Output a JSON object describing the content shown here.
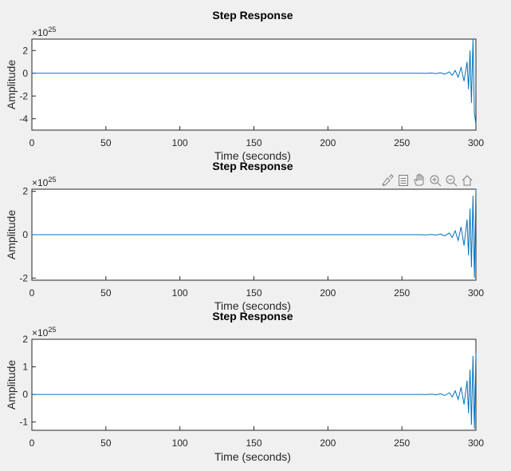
{
  "chart_data": [
    {
      "type": "line",
      "title": "Step Response",
      "xlabel": "Time (seconds)",
      "ylabel": "Amplitude",
      "exponent": "25",
      "xlim": [
        0,
        300
      ],
      "ylim": [
        -5,
        3
      ],
      "xticks": [
        0,
        50,
        100,
        150,
        200,
        250,
        300
      ],
      "yticks": [
        -4,
        -2,
        0,
        2
      ],
      "series": [
        {
          "x": [
            0,
            262,
            266,
            270,
            273,
            276,
            279,
            282,
            284,
            286,
            288,
            290,
            292,
            294,
            295,
            296,
            297,
            298,
            299,
            300
          ],
          "y": [
            0,
            0,
            -0.01,
            0.02,
            -0.03,
            0.05,
            -0.08,
            0.12,
            -0.18,
            0.25,
            -0.35,
            0.5,
            -0.7,
            1.0,
            -1.4,
            2.0,
            -2.6,
            3.0,
            -3.5,
            -4.5
          ]
        }
      ]
    },
    {
      "type": "line",
      "title": "Step Response",
      "xlabel": "Time (seconds)",
      "ylabel": "Amplitude",
      "exponent": "25",
      "xlim": [
        0,
        300
      ],
      "ylim": [
        -2.1,
        2.1
      ],
      "xticks": [
        0,
        50,
        100,
        150,
        200,
        250,
        300
      ],
      "yticks": [
        -2,
        0,
        2
      ],
      "series": [
        {
          "x": [
            0,
            262,
            266,
            270,
            273,
            276,
            279,
            282,
            284,
            286,
            288,
            290,
            292,
            294,
            295,
            296,
            297,
            298,
            299,
            300
          ],
          "y": [
            0,
            0,
            -0.01,
            0.01,
            -0.02,
            0.03,
            -0.05,
            0.08,
            -0.12,
            0.18,
            -0.26,
            0.36,
            -0.5,
            0.7,
            -0.95,
            1.2,
            -1.5,
            1.8,
            -2.0,
            2.1
          ]
        }
      ]
    },
    {
      "type": "line",
      "title": "Step Response",
      "xlabel": "Time (seconds)",
      "ylabel": "Amplitude",
      "exponent": "25",
      "xlim": [
        0,
        300
      ],
      "ylim": [
        -1.3,
        2
      ],
      "xticks": [
        0,
        50,
        100,
        150,
        200,
        250,
        300
      ],
      "yticks": [
        -1,
        0,
        1,
        2
      ],
      "series": [
        {
          "x": [
            0,
            262,
            266,
            270,
            273,
            276,
            279,
            282,
            284,
            286,
            288,
            290,
            292,
            294,
            295,
            296,
            297,
            298,
            299,
            300
          ],
          "y": [
            0,
            0,
            -0.005,
            0.01,
            -0.015,
            0.025,
            -0.04,
            0.06,
            -0.09,
            0.13,
            -0.18,
            0.26,
            -0.36,
            0.5,
            -0.68,
            0.9,
            -1.1,
            1.4,
            -1.25,
            1.5
          ]
        }
      ]
    }
  ]
}
